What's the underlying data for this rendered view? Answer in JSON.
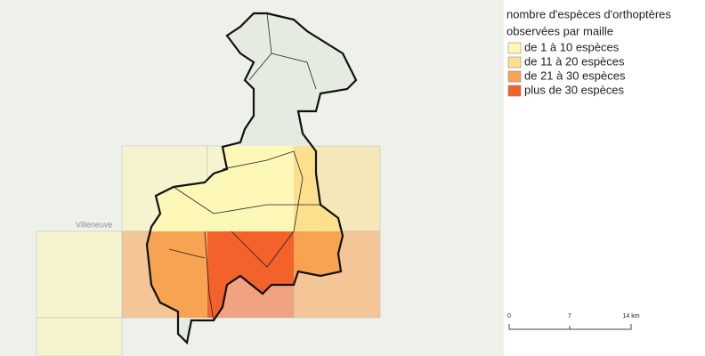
{
  "map": {
    "place_label": "Villeneuve",
    "legend": {
      "title": [
        "nombre d'espèces d'orthoptères",
        "observées par maille"
      ],
      "items": [
        {
          "label": "de 1 à 10 espèces",
          "color": "#fdf7b8"
        },
        {
          "label": "de 11 à 20 espèces",
          "color": "#fde08e"
        },
        {
          "label": "de 21 à 30 espèces",
          "color": "#f8a352"
        },
        {
          "label": "plus de 30 espèces",
          "color": "#f2622a"
        }
      ]
    },
    "scale_bar": {
      "labels": [
        "0",
        "7",
        "14 km"
      ]
    }
  }
}
